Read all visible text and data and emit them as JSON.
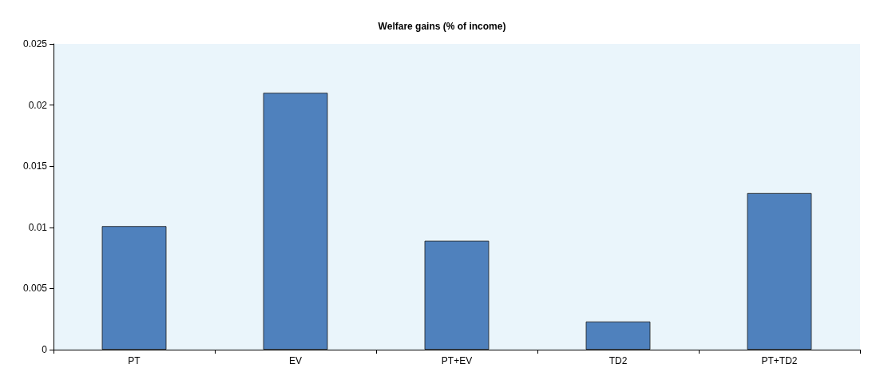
{
  "chart_data": {
    "type": "bar",
    "title": "Welfare gains (% of income)",
    "categories": [
      "PT",
      "EV",
      "PT+EV",
      "TD2",
      "PT+TD2"
    ],
    "values": [
      0.0101,
      0.021,
      0.0089,
      0.0023,
      0.0128
    ],
    "color": "#4f81bd",
    "ylim": [
      0,
      0.025
    ],
    "yticks": [
      0,
      0.005,
      0.01,
      0.015,
      0.02,
      0.025
    ]
  }
}
